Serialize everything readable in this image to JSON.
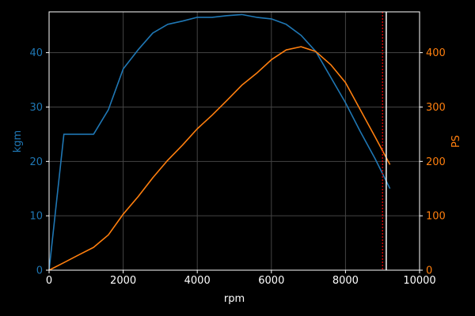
{
  "chart_data": {
    "type": "line",
    "xlabel": "rpm",
    "ylabel_left": "kgm",
    "ylabel_right": "PS",
    "xlim": [
      0,
      10000
    ],
    "ylim_left": [
      0,
      47.5
    ],
    "ylim_right": [
      0,
      475
    ],
    "x_ticks": [
      0,
      2000,
      4000,
      6000,
      8000,
      10000
    ],
    "y_left_ticks": [
      0,
      10,
      20,
      30,
      40
    ],
    "y_right_ticks": [
      0,
      100,
      200,
      300,
      400
    ],
    "grid": true,
    "series": [
      {
        "axis": "left",
        "color": "#1f77b4",
        "x": [
          0,
          400,
          800,
          1200,
          1600,
          2000,
          2400,
          2800,
          3200,
          3600,
          4000,
          4400,
          4800,
          5200,
          5600,
          6000,
          6400,
          6800,
          7200,
          7600,
          8000,
          8400,
          8800,
          9200
        ],
        "y": [
          0,
          25,
          25,
          25,
          29.5,
          37,
          40.5,
          43.6,
          45.2,
          45.8,
          46.5,
          46.5,
          46.8,
          47,
          46.5,
          46.2,
          45.2,
          43.2,
          40.2,
          35.5,
          30.8,
          25.5,
          20.5,
          15
        ]
      },
      {
        "axis": "right",
        "color": "#ff7f0e",
        "x": [
          0,
          400,
          800,
          1200,
          1600,
          2000,
          2400,
          2800,
          3200,
          3600,
          4000,
          4400,
          4800,
          5200,
          5600,
          6000,
          6400,
          6800,
          7200,
          7600,
          8000,
          8400,
          8800,
          9200
        ],
        "y": [
          0,
          14,
          28,
          42,
          65,
          103,
          135,
          170,
          202,
          230,
          260,
          285,
          312,
          340,
          362,
          387,
          405,
          411,
          402,
          378,
          345,
          295,
          245,
          194
        ]
      }
    ],
    "vlines": [
      {
        "x": 9000,
        "color": "#ff0000",
        "style": "dotted"
      },
      {
        "x": 9100,
        "color": "#ffffff",
        "style": "solid"
      }
    ]
  }
}
